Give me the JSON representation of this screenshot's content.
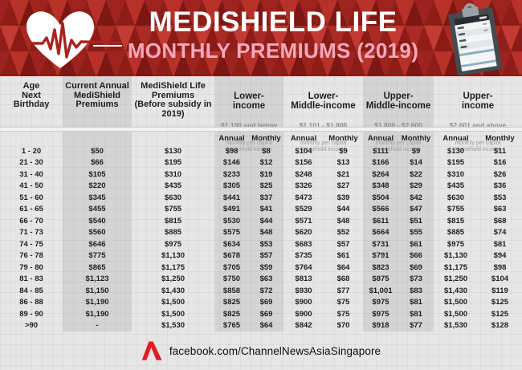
{
  "banner": {
    "title": "MEDISHIELD LIFE",
    "subtitle": "MONTHLY PREMIUMS (2019)"
  },
  "table": {
    "col_age": "Age\nNext\nBirthday",
    "col_current": "Current Annual\nMediShield\nPremiums",
    "col_life": "MediShield Life\nPremiums\n(Before subsidy in\n2019)",
    "income_groups": [
      {
        "title": "Lower-\nincome",
        "range": "$1,100 and below",
        "note": "monthly per capita\nhousehold income"
      },
      {
        "title": "Lower-\nMiddle-income",
        "range": "$1,101 - $1,800",
        "note": "monthly per capita\nhousehold income"
      },
      {
        "title": "Upper-\nMiddle-income",
        "range": "$1,800 - $2,600",
        "note": "monthly per capita\nhousehold income"
      },
      {
        "title": "Upper-\nincome",
        "range": "$2,601 and above",
        "note": "monthly per capita\nhousehold income"
      }
    ],
    "sub_headers": {
      "annual": "Annual",
      "monthly": "Monthly"
    }
  },
  "chart_data": {
    "type": "table",
    "title": "MEDISHIELD LIFE MONTHLY PREMIUMS (2019)",
    "columns": [
      "Age Next Birthday",
      "Current Annual MediShield Premiums",
      "MediShield Life Premiums (Before subsidy in 2019)",
      "Lower-income Annual ($1,100 and below monthly per capita household income)",
      "Lower-income Monthly",
      "Lower-Middle-income Annual ($1,101 - $1,800 monthly per capita household income)",
      "Lower-Middle-income Monthly",
      "Upper-Middle-income Annual ($1,800 - $2,600 monthly per capita household income)",
      "Upper-Middle-income Monthly",
      "Upper-income Annual ($2,601 and above monthly per capita household income)",
      "Upper-income Monthly"
    ],
    "rows": [
      [
        "1 - 20",
        "$50",
        "$130",
        "$98",
        "$8",
        "$104",
        "$9",
        "$111",
        "$9",
        "$130",
        "$11"
      ],
      [
        "21 - 30",
        "$66",
        "$195",
        "$146",
        "$12",
        "$156",
        "$13",
        "$166",
        "$14",
        "$195",
        "$16"
      ],
      [
        "31 - 40",
        "$105",
        "$310",
        "$233",
        "$19",
        "$248",
        "$21",
        "$264",
        "$22",
        "$310",
        "$26"
      ],
      [
        "41 - 50",
        "$220",
        "$435",
        "$305",
        "$25",
        "$326",
        "$27",
        "$348",
        "$29",
        "$435",
        "$36"
      ],
      [
        "51 - 60",
        "$345",
        "$630",
        "$441",
        "$37",
        "$473",
        "$39",
        "$504",
        "$42",
        "$630",
        "$53"
      ],
      [
        "61 - 65",
        "$455",
        "$755",
        "$491",
        "$41",
        "$529",
        "$44",
        "$566",
        "$47",
        "$755",
        "$63"
      ],
      [
        "66 - 70",
        "$540",
        "$815",
        "$530",
        "$44",
        "$571",
        "$48",
        "$611",
        "$51",
        "$815",
        "$68"
      ],
      [
        "71 - 73",
        "$560",
        "$885",
        "$575",
        "$48",
        "$620",
        "$52",
        "$664",
        "$55",
        "$885",
        "$74"
      ],
      [
        "74 - 75",
        "$646",
        "$975",
        "$634",
        "$53",
        "$683",
        "$57",
        "$731",
        "$61",
        "$975",
        "$81"
      ],
      [
        "76 - 78",
        "$775",
        "$1,130",
        "$678",
        "$57",
        "$735",
        "$61",
        "$791",
        "$66",
        "$1,130",
        "$94"
      ],
      [
        "79 - 80",
        "$865",
        "$1,175",
        "$705",
        "$59",
        "$764",
        "$64",
        "$823",
        "$69",
        "$1,175",
        "$98"
      ],
      [
        "81 - 83",
        "$1,123",
        "$1,250",
        "$750",
        "$63",
        "$813",
        "$68",
        "$875",
        "$73",
        "$1,250",
        "$104"
      ],
      [
        "84 - 85",
        "$1,150",
        "$1,430",
        "$858",
        "$72",
        "$930",
        "$77",
        "$1,001",
        "$83",
        "$1,430",
        "$119"
      ],
      [
        "86 - 88",
        "$1,190",
        "$1,500",
        "$825",
        "$69",
        "$900",
        "$75",
        "$975",
        "$81",
        "$1,500",
        "$125"
      ],
      [
        "89 - 90",
        "$1,190",
        "$1,500",
        "$825",
        "$69",
        "$900",
        "$75",
        "$975",
        "$81",
        "$1,500",
        "$125"
      ],
      [
        ">90",
        "-",
        "$1,530",
        "$765",
        "$64",
        "$842",
        "$70",
        "$918",
        "$77",
        "$1,530",
        "$128"
      ]
    ]
  },
  "footer": {
    "facebook": "facebook.com/ChannelNewsAsiaSingapore"
  },
  "icons": {
    "heart": "heart-ecg-icon",
    "clipboard": "clipboard-icon",
    "logo": "cna-logo-icon"
  },
  "colors": {
    "banner_red": "#a32722",
    "title_white": "#ffffff",
    "subtitle_pink": "#f3a9bb",
    "logo_red": "#e31b23",
    "text_dark": "#1f1f1f",
    "muted_gray": "#8e8e8e",
    "bg_gray": "#e6e6e6"
  }
}
